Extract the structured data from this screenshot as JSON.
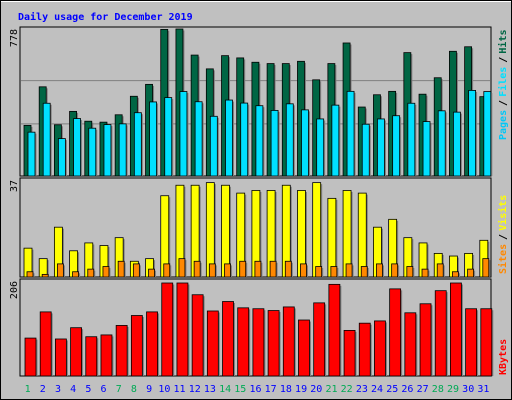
{
  "chart_data": [
    {
      "type": "bar",
      "title": "Daily usage for December 2019",
      "categories": [
        "1",
        "2",
        "3",
        "4",
        "5",
        "6",
        "7",
        "8",
        "9",
        "10",
        "11",
        "12",
        "13",
        "14",
        "15",
        "16",
        "17",
        "18",
        "19",
        "20",
        "21",
        "22",
        "23",
        "24",
        "25",
        "26",
        "27",
        "28",
        "29",
        "30",
        "31"
      ],
      "weekend_days": [
        "1",
        "7",
        "8",
        "14",
        "15",
        "21",
        "22",
        "28",
        "29"
      ],
      "ylim": [
        0,
        778
      ],
      "ytick": "778",
      "legend": [
        "Pages",
        "/",
        "Files",
        "/",
        "Hits"
      ],
      "series": [
        {
          "name": "Hits",
          "color": "#006644",
          "values": [
            268,
            472,
            271,
            342,
            290,
            285,
            324,
            422,
            485,
            776,
            778,
            640,
            567,
            637,
            625,
            602,
            595,
            595,
            607,
            509,
            595,
            704,
            365,
            430,
            448,
            653,
            433,
            520,
            660,
            684,
            420
          ]
        },
        {
          "name": "Files",
          "color": "#00e0ff",
          "values": [
            232,
            385,
            198,
            304,
            253,
            272,
            276,
            335,
            392,
            415,
            447,
            393,
            316,
            402,
            386,
            372,
            347,
            382,
            350,
            302,
            375,
            448,
            274,
            302,
            319,
            385,
            288,
            345,
            338,
            453,
            447
          ]
        },
        {
          "name": "Pages",
          "color": "#00c8f8",
          "values": [
            0,
            0,
            0,
            0,
            0,
            0,
            0,
            0,
            0,
            0,
            0,
            0,
            0,
            0,
            0,
            0,
            0,
            0,
            0,
            0,
            0,
            0,
            0,
            0,
            0,
            0,
            0,
            0,
            0,
            0,
            0
          ]
        }
      ]
    },
    {
      "type": "bar",
      "categories": [
        "1",
        "2",
        "3",
        "4",
        "5",
        "6",
        "7",
        "8",
        "9",
        "10",
        "11",
        "12",
        "13",
        "14",
        "15",
        "16",
        "17",
        "18",
        "19",
        "20",
        "21",
        "22",
        "23",
        "24",
        "25",
        "26",
        "27",
        "28",
        "29",
        "30",
        "31"
      ],
      "ylim": [
        0,
        37
      ],
      "ytick": "37",
      "legend": [
        "Sites",
        "/",
        "Visits"
      ],
      "series": [
        {
          "name": "Visits",
          "color": "#ffff00",
          "values": [
            11,
            7,
            19,
            10,
            13,
            12,
            15,
            6,
            7,
            31,
            35,
            35,
            36,
            35,
            32,
            33,
            33,
            35,
            33,
            36,
            30,
            33,
            32,
            19,
            22,
            15,
            13,
            9,
            8,
            9,
            14
          ]
        },
        {
          "name": "Sites",
          "color": "#ff8800",
          "values": [
            2,
            1,
            5,
            2,
            3,
            4,
            6,
            5,
            3,
            5,
            7,
            6,
            5,
            5,
            6,
            6,
            6,
            6,
            5,
            4,
            4,
            5,
            4,
            5,
            5,
            4,
            3,
            5,
            2,
            3,
            7
          ]
        }
      ]
    },
    {
      "type": "bar",
      "categories": [
        "1",
        "2",
        "3",
        "4",
        "5",
        "6",
        "7",
        "8",
        "9",
        "10",
        "11",
        "12",
        "13",
        "14",
        "15",
        "16",
        "17",
        "18",
        "19",
        "20",
        "21",
        "22",
        "23",
        "24",
        "25",
        "26",
        "27",
        "28",
        "29",
        "30",
        "31"
      ],
      "ylim": [
        0,
        206
      ],
      "ytick": "206",
      "legend": [
        "KBytes"
      ],
      "series": [
        {
          "name": "KBytes",
          "color": "#ff0000",
          "values": [
            84,
            142,
            82,
            107,
            87,
            91,
            112,
            134,
            142,
            206,
            206,
            180,
            144,
            165,
            151,
            149,
            145,
            153,
            124,
            162,
            203,
            101,
            117,
            122,
            193,
            140,
            160,
            189,
            206,
            149,
            149
          ]
        }
      ]
    }
  ],
  "colors": {
    "background": "#c0c0c0",
    "plot_bg": "#c0c0c0",
    "title": "#0000ff",
    "weekend_label": "#00aa55",
    "weekday_label": "#0000ff",
    "pages": "#00c8f8",
    "files": "#00e0ff",
    "hits": "#006644",
    "sites": "#ff8800",
    "visits": "#ffff00",
    "kbytes": "#ff0000",
    "sep": "#000000"
  }
}
